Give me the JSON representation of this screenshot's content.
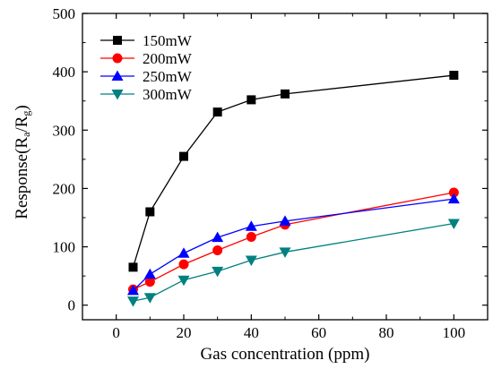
{
  "chart_data": {
    "type": "line",
    "xlabel": "Gas concentration (ppm)",
    "ylabel": {
      "base": "Response(R",
      "sub1": "a",
      "mid": "/R",
      "sub2": "g",
      "end": ")"
    },
    "xlim": [
      -10,
      110
    ],
    "ylim": [
      -25,
      500
    ],
    "xticks": [
      0,
      20,
      40,
      60,
      80,
      100
    ],
    "yticks": [
      0,
      100,
      200,
      300,
      400,
      500
    ],
    "x": [
      5,
      10,
      20,
      30,
      40,
      50,
      100
    ],
    "legend_position": "top-left",
    "grid": false,
    "series": [
      {
        "name": "150mW",
        "color": "#000000",
        "marker": "square",
        "values": [
          65,
          160,
          255,
          331,
          352,
          362,
          394
        ]
      },
      {
        "name": "200mW",
        "color": "#ff0000",
        "marker": "circle",
        "values": [
          27,
          40,
          70,
          94,
          117,
          138,
          193
        ]
      },
      {
        "name": "250mW",
        "color": "#0000ff",
        "marker": "triangle-up",
        "values": [
          25,
          53,
          89,
          116,
          135,
          144,
          182
        ]
      },
      {
        "name": "300mW",
        "color": "#008080",
        "marker": "triangle-down",
        "values": [
          7,
          13,
          43,
          58,
          77,
          91,
          140
        ]
      }
    ]
  }
}
